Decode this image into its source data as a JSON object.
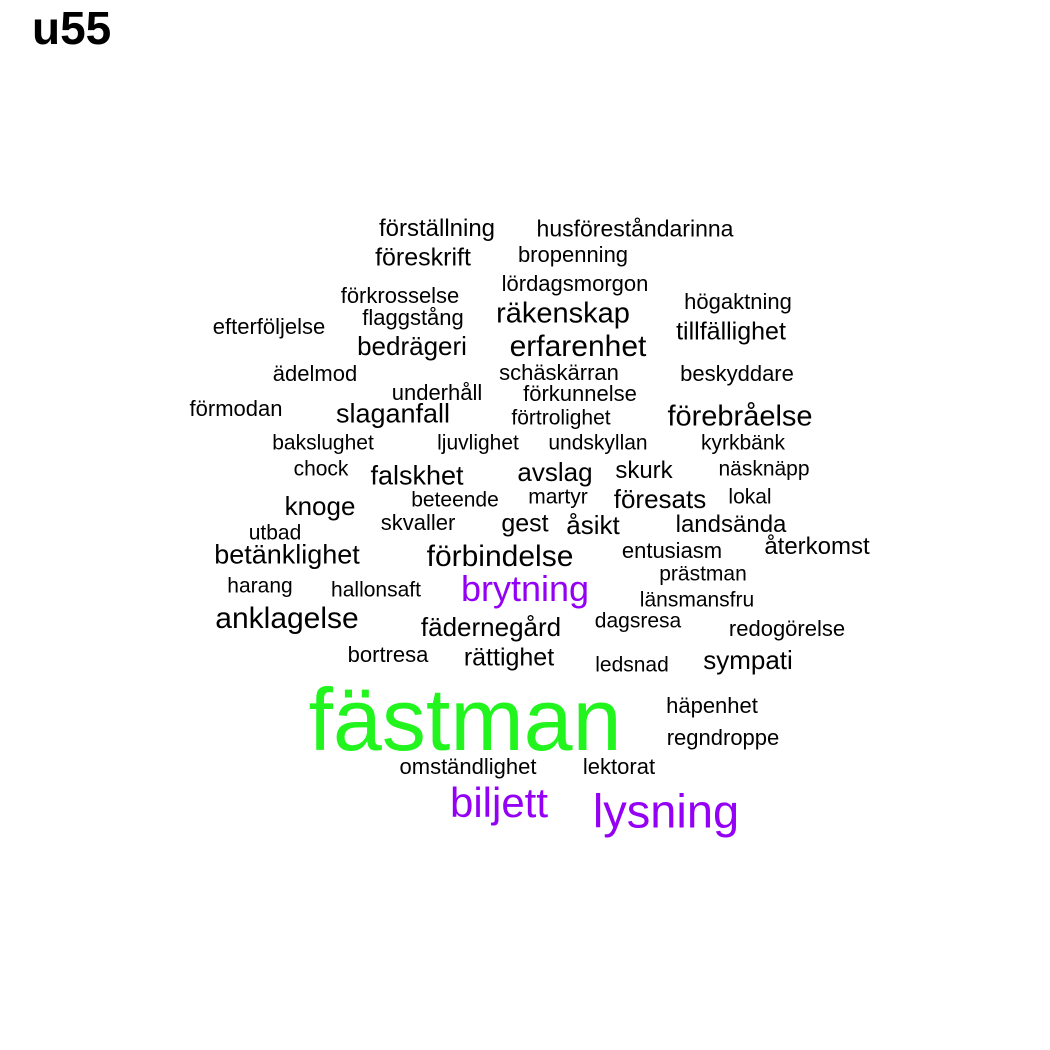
{
  "title": "u55",
  "colors": {
    "default": "#000000",
    "purple": "#9400F5",
    "green": "#22F51E"
  },
  "words": [
    {
      "text": "förställning",
      "color": "default"
    },
    {
      "text": "husföreståndarinna",
      "color": "default"
    },
    {
      "text": "föreskrift",
      "color": "default"
    },
    {
      "text": "bropenning",
      "color": "default"
    },
    {
      "text": "lördagsmorgon",
      "color": "default"
    },
    {
      "text": "förkrosselse",
      "color": "default"
    },
    {
      "text": "högaktning",
      "color": "default"
    },
    {
      "text": "flaggstång",
      "color": "default"
    },
    {
      "text": "räkenskap",
      "color": "default"
    },
    {
      "text": "efterföljelse",
      "color": "default"
    },
    {
      "text": "tillfällighet",
      "color": "default"
    },
    {
      "text": "bedrägeri",
      "color": "default"
    },
    {
      "text": "erfarenhet",
      "color": "default"
    },
    {
      "text": "schäskärran",
      "color": "default"
    },
    {
      "text": "ädelmod",
      "color": "default"
    },
    {
      "text": "beskyddare",
      "color": "default"
    },
    {
      "text": "underhåll",
      "color": "default"
    },
    {
      "text": "förkunnelse",
      "color": "default"
    },
    {
      "text": "förmodan",
      "color": "default"
    },
    {
      "text": "slaganfall",
      "color": "default"
    },
    {
      "text": "förtrolighet",
      "color": "default"
    },
    {
      "text": "förebråelse",
      "color": "default"
    },
    {
      "text": "bakslughet",
      "color": "default"
    },
    {
      "text": "ljuvlighet",
      "color": "default"
    },
    {
      "text": "undskyllan",
      "color": "default"
    },
    {
      "text": "kyrkbänk",
      "color": "default"
    },
    {
      "text": "chock",
      "color": "default"
    },
    {
      "text": "falskhet",
      "color": "default"
    },
    {
      "text": "avslag",
      "color": "default"
    },
    {
      "text": "skurk",
      "color": "default"
    },
    {
      "text": "näsknäpp",
      "color": "default"
    },
    {
      "text": "knoge",
      "color": "default"
    },
    {
      "text": "beteende",
      "color": "default"
    },
    {
      "text": "martyr",
      "color": "default"
    },
    {
      "text": "föresats",
      "color": "default"
    },
    {
      "text": "lokal",
      "color": "default"
    },
    {
      "text": "skvaller",
      "color": "default"
    },
    {
      "text": "gest",
      "color": "default"
    },
    {
      "text": "åsikt",
      "color": "default"
    },
    {
      "text": "landsända",
      "color": "default"
    },
    {
      "text": "utbad",
      "color": "default"
    },
    {
      "text": "betänklighet",
      "color": "default"
    },
    {
      "text": "förbindelse",
      "color": "default"
    },
    {
      "text": "entusiasm",
      "color": "default"
    },
    {
      "text": "återkomst",
      "color": "default"
    },
    {
      "text": "prästman",
      "color": "default"
    },
    {
      "text": "harang",
      "color": "default"
    },
    {
      "text": "hallonsaft",
      "color": "default"
    },
    {
      "text": "brytning",
      "color": "purple"
    },
    {
      "text": "länsmansfru",
      "color": "default"
    },
    {
      "text": "anklagelse",
      "color": "default"
    },
    {
      "text": "fädernegård",
      "color": "default"
    },
    {
      "text": "dagsresa",
      "color": "default"
    },
    {
      "text": "redogörelse",
      "color": "default"
    },
    {
      "text": "bortresa",
      "color": "default"
    },
    {
      "text": "rättighet",
      "color": "default"
    },
    {
      "text": "ledsnad",
      "color": "default"
    },
    {
      "text": "sympati",
      "color": "default"
    },
    {
      "text": "fästman",
      "color": "green"
    },
    {
      "text": "häpenhet",
      "color": "default"
    },
    {
      "text": "regndroppe",
      "color": "default"
    },
    {
      "text": "omständlighet",
      "color": "default"
    },
    {
      "text": "lektorat",
      "color": "default"
    },
    {
      "text": "biljett",
      "color": "purple"
    },
    {
      "text": "lysning",
      "color": "purple"
    }
  ]
}
